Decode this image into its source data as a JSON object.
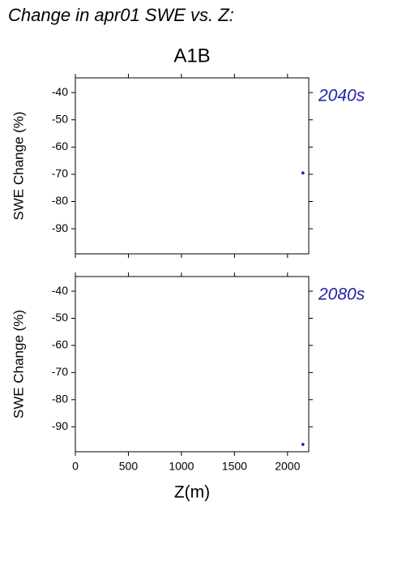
{
  "title": "Change in apr01 SWE vs. Z:",
  "chart_data": [
    {
      "type": "scatter",
      "title": "A1B",
      "annotation": "2040s",
      "ylabel": "SWE Change (%)",
      "x": [
        2145
      ],
      "values": [
        -69.5
      ],
      "color": "#1a1aa0",
      "xlim": [
        0,
        2200
      ],
      "ylim": [
        -99.2,
        -34.6
      ],
      "yticks": [
        -40,
        -50,
        -60,
        -70,
        -80,
        -90
      ]
    },
    {
      "type": "scatter",
      "annotation": "2080s",
      "ylabel": "SWE Change (%)",
      "xlabel": "Z(m)",
      "x": [
        2145
      ],
      "values": [
        -96.5
      ],
      "color": "#1a1aa0",
      "xlim": [
        0,
        2200
      ],
      "ylim": [
        -99.2,
        -34.6
      ],
      "yticks": [
        -40,
        -50,
        -60,
        -70,
        -80,
        -90
      ],
      "xticks": [
        0,
        500,
        1000,
        1500,
        2000
      ]
    }
  ]
}
